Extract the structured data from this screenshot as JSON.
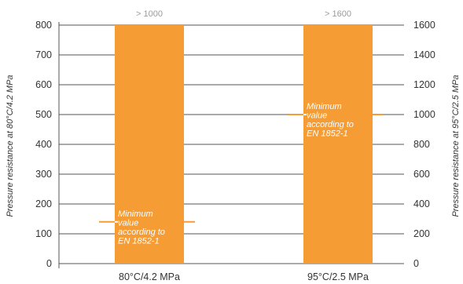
{
  "chart_data": {
    "type": "bar",
    "categories": [
      "80°C/4.2 MPa",
      "95°C/2.5 MPa"
    ],
    "values": [
      800,
      800
    ],
    "value_labels": [
      "> 1000",
      "> 1600"
    ],
    "ylabel_left": "Pressure resistance at 80°C/4.2 MPa",
    "ylabel_right": "Pressure resistance at 95°C/2.5 MPa",
    "ylim_left": [
      0,
      800
    ],
    "ylim_right": [
      0,
      1600
    ],
    "yticks_left": [
      0,
      100,
      200,
      300,
      400,
      500,
      600,
      700,
      800
    ],
    "yticks_right": [
      0,
      200,
      400,
      600,
      800,
      1000,
      1200,
      1400,
      1600
    ],
    "grid": true,
    "bar_color": "#f59c34",
    "minimum_markers": [
      {
        "category": "80°C/4.2 MPa",
        "value": 140,
        "axis": "left",
        "label_lines": [
          "Minimum",
          "value",
          "according to",
          "EN 1852-1"
        ]
      },
      {
        "category": "95°C/2.5 MPa",
        "value": 1000,
        "axis": "right",
        "label_lines": [
          "Minimum",
          "value",
          "according to",
          "EN 1852-1"
        ]
      }
    ]
  }
}
